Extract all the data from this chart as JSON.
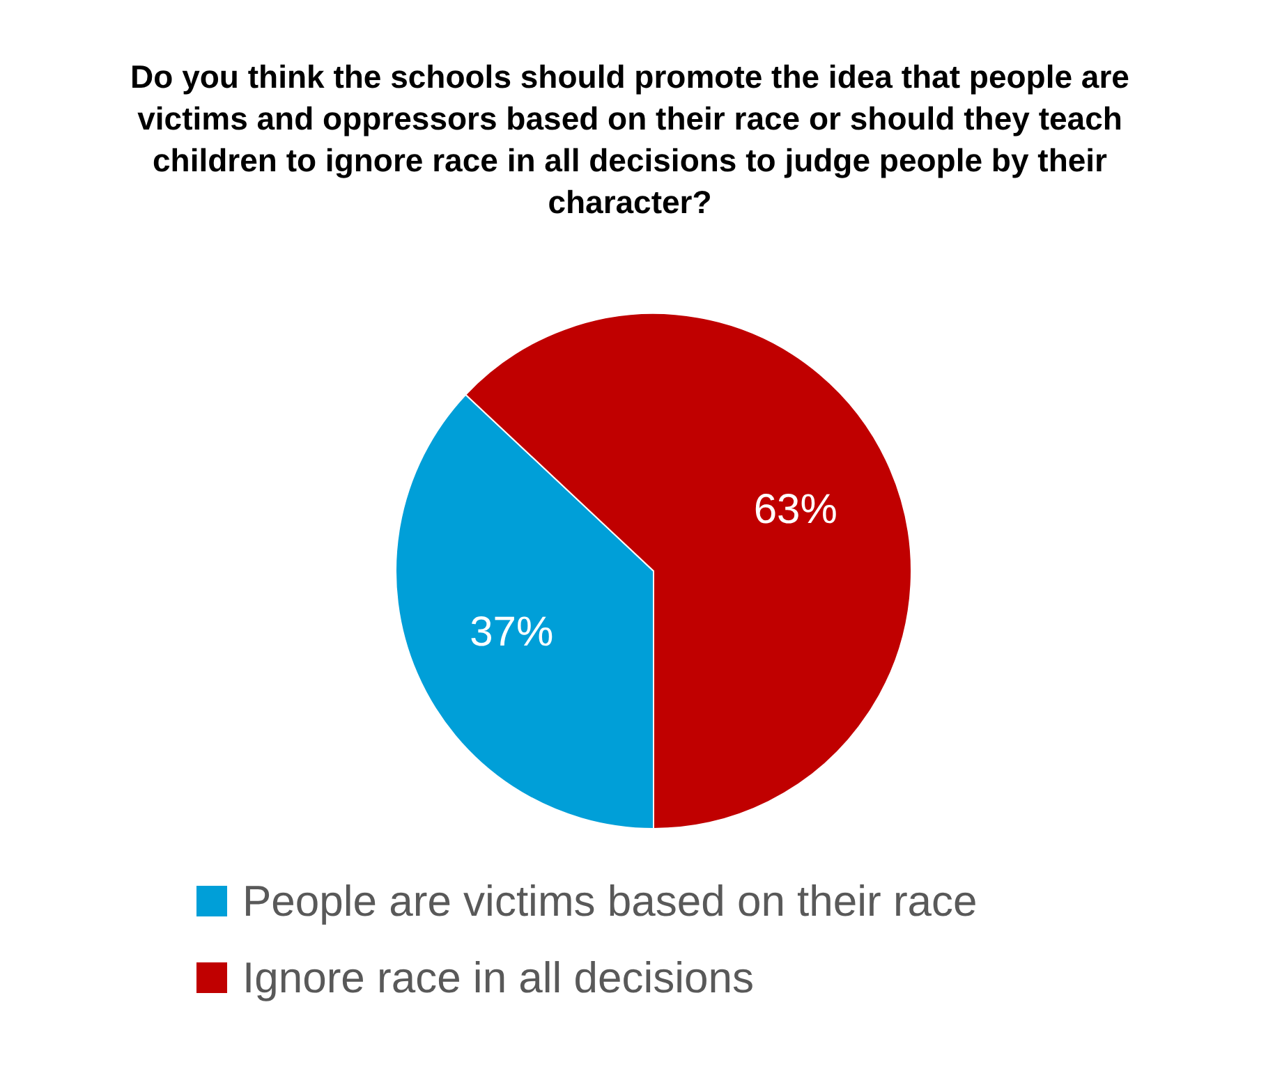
{
  "chart_data": {
    "type": "pie",
    "title": "Do you think the schools should promote the idea that people are victims and oppressors based on their race or should they teach children to ignore race in all decisions to judge people by their character?",
    "categories": [
      "People are victims based on their race",
      "Ignore race in all decisions"
    ],
    "values": [
      37,
      63
    ],
    "colors": [
      "#009fd8",
      "#c00000"
    ],
    "value_labels": [
      "37%",
      "63%"
    ],
    "legend": "bottom"
  }
}
